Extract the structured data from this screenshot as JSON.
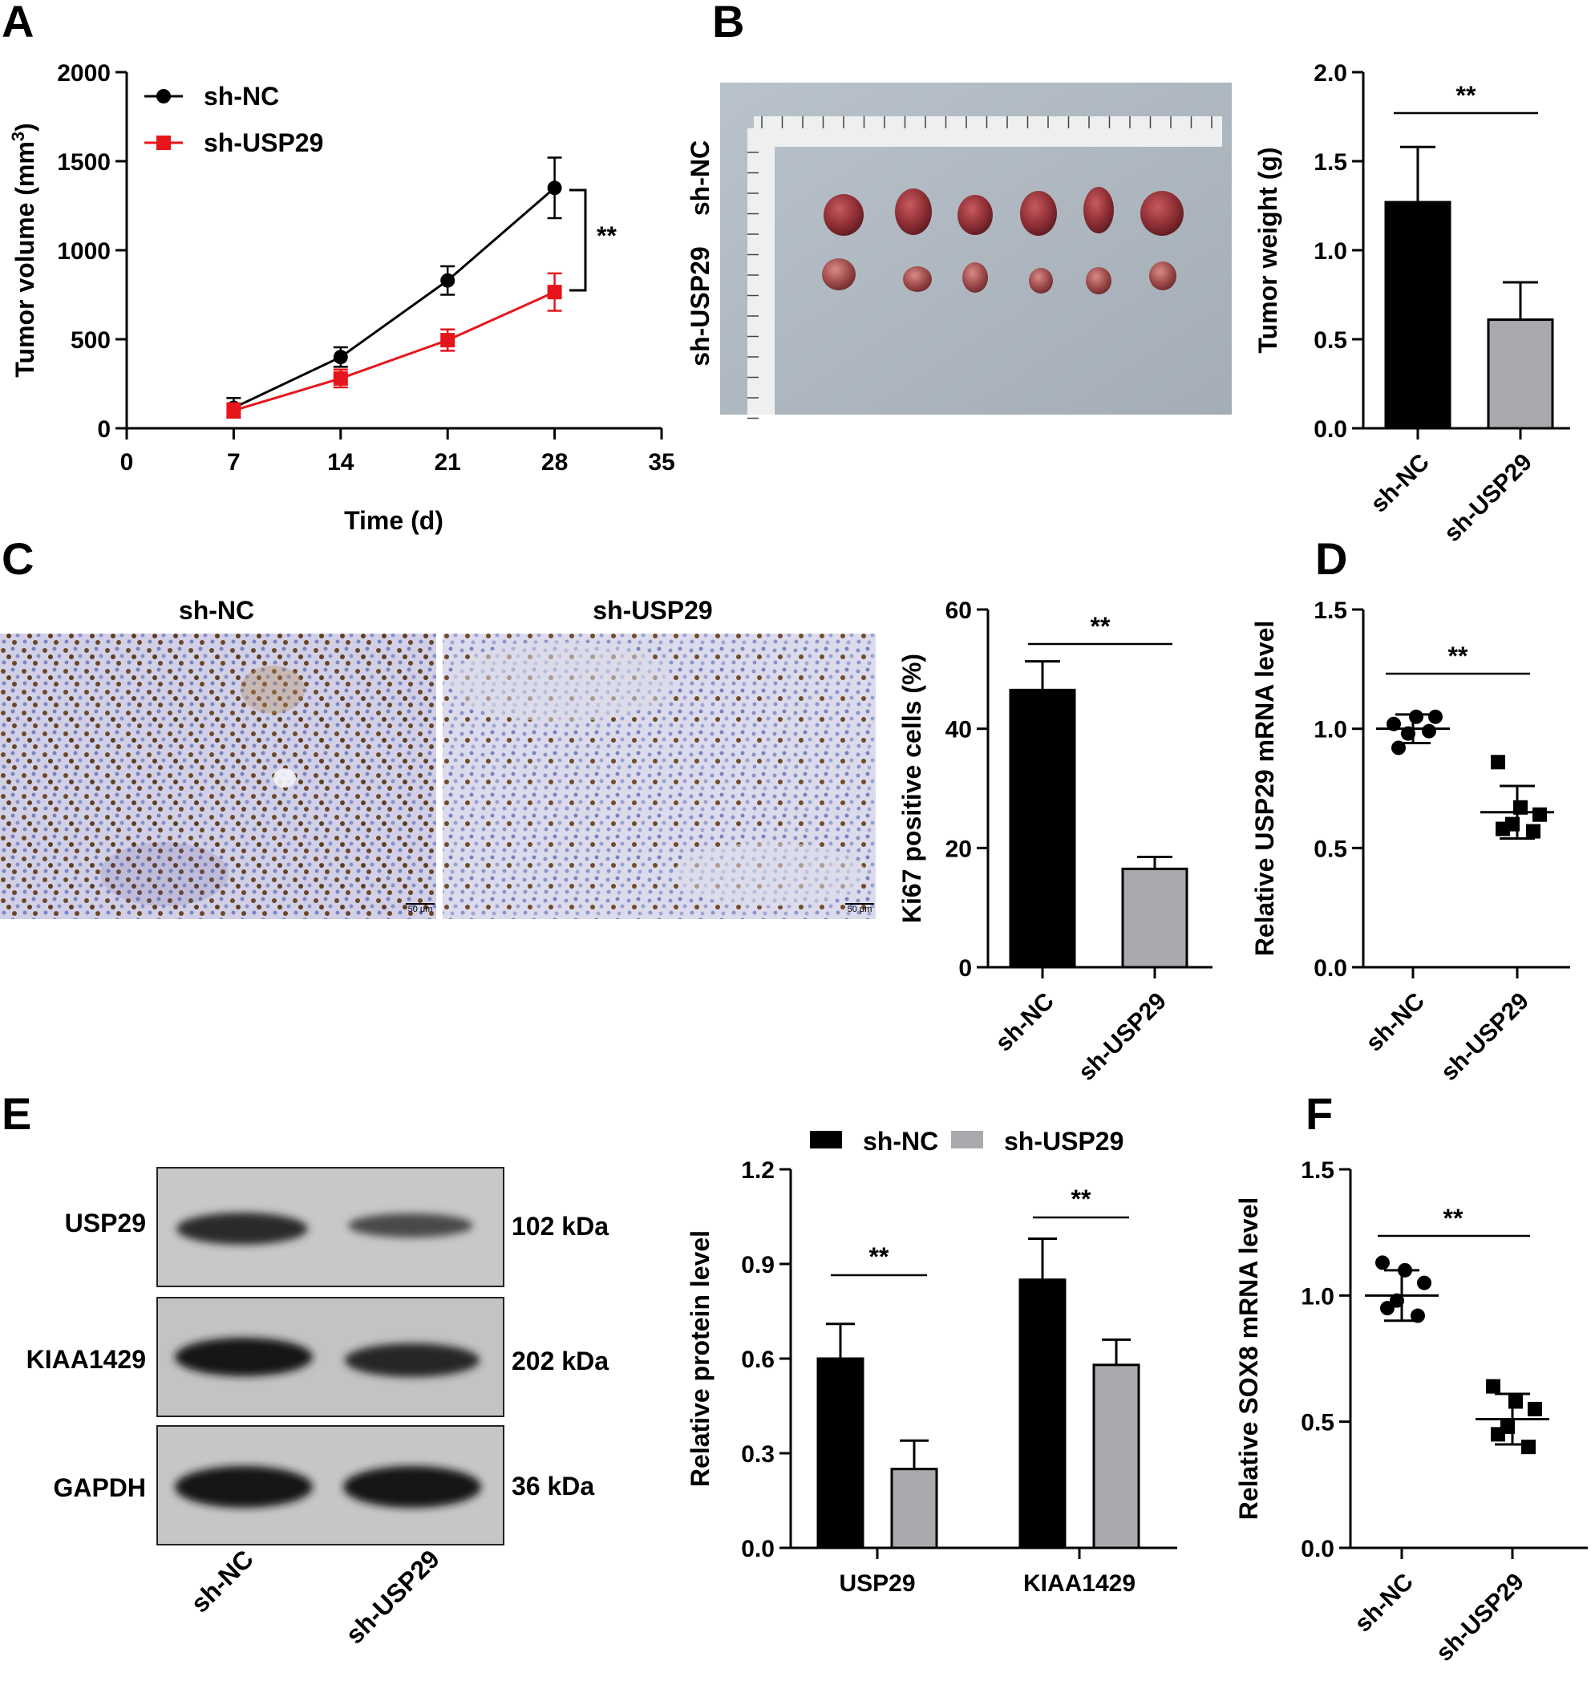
{
  "panels": {
    "A": "A",
    "B": "B",
    "C": "C",
    "D": "D",
    "E": "E",
    "F": "F"
  },
  "colors": {
    "black": "#000000",
    "red": "#e8141b",
    "gray": "#a9a9ae"
  },
  "chart_data": [
    {
      "panel": "A",
      "type": "line",
      "xlabel": "Time (d)",
      "ylabel": "Tumor volume (mm³)",
      "xlim": [
        0,
        35
      ],
      "ylim": [
        0,
        2000
      ],
      "xticks": [
        "0",
        "7",
        "14",
        "21",
        "28",
        "35"
      ],
      "yticks": [
        "0",
        "500",
        "1000",
        "1500",
        "2000"
      ],
      "x": [
        7,
        14,
        21,
        28
      ],
      "series": [
        {
          "name": "sh-NC",
          "color": "#000000",
          "marker": "circle",
          "values": [
            115,
            400,
            830,
            1350
          ],
          "err": [
            55,
            55,
            80,
            170
          ]
        },
        {
          "name": "sh-USP29",
          "color": "#e8141b",
          "marker": "square",
          "values": [
            100,
            280,
            495,
            765
          ],
          "err": [
            40,
            50,
            60,
            105
          ]
        }
      ],
      "annotation": "**",
      "legend": "top-left"
    },
    {
      "panel": "B",
      "type": "bar",
      "ylabel": "Tumor weight (g)",
      "ylim": [
        0,
        2.0
      ],
      "yticks": [
        "0.0",
        "0.5",
        "1.0",
        "1.5",
        "2.0"
      ],
      "categories": [
        "sh-NC",
        "sh-USP29"
      ],
      "values": [
        1.27,
        0.61
      ],
      "err": [
        0.31,
        0.21
      ],
      "colors": [
        "#000000",
        "#a9a9ae"
      ],
      "annotation": "**",
      "photo_labels": [
        "sh-NC",
        "sh-USP29"
      ]
    },
    {
      "panel": "C",
      "type": "bar",
      "ylabel": "Ki67 positive cells (%)",
      "ylim": [
        0,
        60
      ],
      "yticks": [
        "0",
        "20",
        "40",
        "60"
      ],
      "categories": [
        "sh-NC",
        "sh-USP29"
      ],
      "values": [
        46.5,
        16.5
      ],
      "err": [
        4.8,
        2.0
      ],
      "colors": [
        "#000000",
        "#a9a9ae"
      ],
      "annotation": "**",
      "image_titles": [
        "sh-NC",
        "sh-USP29"
      ],
      "scale_bar": "50 μm"
    },
    {
      "panel": "D",
      "type": "scatter",
      "ylabel": "Relative USP29 mRNA level",
      "ylim": [
        0,
        1.5
      ],
      "yticks": [
        "0.0",
        "0.5",
        "1.0",
        "1.5"
      ],
      "categories": [
        "sh-NC",
        "sh-USP29"
      ],
      "groups": [
        {
          "name": "sh-NC",
          "marker": "circle",
          "points": [
            1.02,
            1.05,
            1.05,
            0.98,
            0.92,
            0.99
          ],
          "mean": 1.0,
          "sd": 0.06
        },
        {
          "name": "sh-USP29",
          "marker": "square",
          "points": [
            0.86,
            0.67,
            0.64,
            0.6,
            0.58,
            0.57
          ],
          "mean": 0.65,
          "sd": 0.11
        }
      ],
      "annotation": "**"
    },
    {
      "panel": "E",
      "type": "bar",
      "ylabel": "Relative protein level",
      "ylim": [
        0,
        1.2
      ],
      "yticks": [
        "0.0",
        "0.3",
        "0.6",
        "0.9",
        "1.2"
      ],
      "categories": [
        "USP29",
        "KIAA1429"
      ],
      "series": [
        {
          "name": "sh-NC",
          "color": "#000000",
          "values": [
            0.6,
            0.85
          ],
          "err": [
            0.11,
            0.13
          ]
        },
        {
          "name": "sh-USP29",
          "color": "#a9a9ae",
          "values": [
            0.25,
            0.58
          ],
          "err": [
            0.09,
            0.08
          ]
        }
      ],
      "annotation": "**",
      "legend": "top"
    },
    {
      "panel": "F",
      "type": "scatter",
      "ylabel": "Relative SOX8 mRNA level",
      "ylim": [
        0,
        1.5
      ],
      "yticks": [
        "0.0",
        "0.5",
        "1.0",
        "1.5"
      ],
      "categories": [
        "sh-NC",
        "sh-USP29"
      ],
      "groups": [
        {
          "name": "sh-NC",
          "marker": "circle",
          "points": [
            1.13,
            1.1,
            1.05,
            0.98,
            0.95,
            0.92
          ],
          "mean": 1.0,
          "sd": 0.1
        },
        {
          "name": "sh-USP29",
          "marker": "square",
          "points": [
            0.64,
            0.58,
            0.55,
            0.48,
            0.45,
            0.4
          ],
          "mean": 0.51,
          "sd": 0.1
        }
      ],
      "annotation": "**"
    }
  ],
  "western_blot": {
    "proteins": [
      "USP29",
      "KIAA1429",
      "GAPDH"
    ],
    "sizes": [
      "102 kDa",
      "202 kDa",
      "36 kDa"
    ],
    "lanes": [
      "sh-NC",
      "sh-USP29"
    ]
  }
}
